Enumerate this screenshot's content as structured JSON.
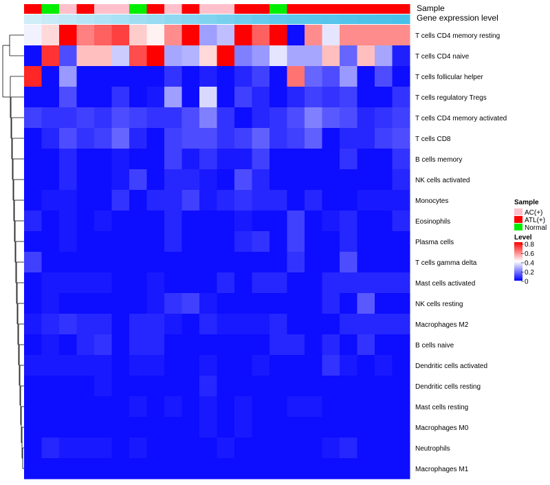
{
  "chart_data": {
    "type": "heatmap",
    "title": "",
    "colors": {
      "low": "#0000ff",
      "mid": "#ffffff",
      "high": "#ff0000",
      "sample_colors": {
        "AC(+)": "#ffc0cb",
        "ATL(+)": "#ff0000",
        "Normal": "#00ee00"
      },
      "gene_expression_low": "#e0f3fa",
      "gene_expression_high": "#3fbde8",
      "dendrogram": "#000000"
    },
    "annotation_labels": [
      "Sample",
      "Gene expression level"
    ],
    "sample_annotation": [
      "ATL(+)",
      "Normal",
      "AC(+)",
      "ATL(+)",
      "AC(+)",
      "AC(+)",
      "Normal",
      "ATL(+)",
      "AC(+)",
      "ATL(+)",
      "AC(+)",
      "AC(+)",
      "ATL(+)",
      "ATL(+)",
      "Normal",
      "ATL(+)",
      "ATL(+)",
      "ATL(+)",
      "ATL(+)",
      "ATL(+)",
      "ATL(+)",
      "ATL(+)"
    ],
    "gene_expression_level": [
      0.1,
      0.15,
      0.2,
      0.25,
      0.3,
      0.35,
      0.4,
      0.45,
      0.5,
      0.55,
      0.6,
      0.65,
      0.7,
      0.75,
      0.8,
      0.82,
      0.84,
      0.86,
      0.88,
      0.9,
      0.92,
      0.95
    ],
    "rows": [
      "T cells CD4 memory resting",
      "T cells CD4 naive",
      "T cells follicular helper",
      "T cells regulatory  Tregs",
      "T cells CD4 memory activated",
      "T cells CD8",
      "B cells memory",
      "NK cells activated",
      "Monocytes",
      "Eosinophils",
      "Plasma cells",
      "T cells gamma delta",
      "Mast cells activated",
      "NK cells resting",
      "Macrophages M2",
      "B cells naive",
      "Dendritic cells activated",
      "Dendritic cells resting",
      "Mast cells resting",
      "Macrophages M0",
      "Neutrophils",
      "Macrophages M1"
    ],
    "values": [
      [
        0.38,
        0.46,
        0.8,
        0.6,
        0.65,
        0.7,
        0.48,
        0.42,
        0.58,
        0.8,
        0.25,
        0.3,
        0.8,
        0.65,
        0.8,
        0.02,
        0.58,
        0.36,
        0.58,
        0.58,
        0.58,
        0.58
      ],
      [
        0.02,
        0.72,
        0.12,
        0.5,
        0.5,
        0.32,
        0.68,
        0.8,
        0.26,
        0.28,
        0.46,
        0.8,
        0.2,
        0.24,
        0.36,
        0.26,
        0.26,
        0.5,
        0.16,
        0.5,
        0.26,
        0.05
      ],
      [
        0.74,
        0.02,
        0.24,
        0.02,
        0.02,
        0.02,
        0.02,
        0.02,
        0.08,
        0.02,
        0.05,
        0.02,
        0.06,
        0.1,
        0.02,
        0.62,
        0.16,
        0.12,
        0.24,
        0.02,
        0.12,
        0.02
      ],
      [
        0.02,
        0.02,
        0.12,
        0.02,
        0.02,
        0.08,
        0.02,
        0.04,
        0.25,
        0.02,
        0.34,
        0.02,
        0.1,
        0.06,
        0.02,
        0.06,
        0.1,
        0.08,
        0.1,
        0.02,
        0.02,
        0.08
      ],
      [
        0.1,
        0.08,
        0.08,
        0.1,
        0.08,
        0.12,
        0.1,
        0.08,
        0.08,
        0.12,
        0.2,
        0.08,
        0.02,
        0.06,
        0.08,
        0.12,
        0.2,
        0.14,
        0.12,
        0.06,
        0.08,
        0.1
      ],
      [
        0.02,
        0.06,
        0.12,
        0.08,
        0.1,
        0.16,
        0.06,
        0.02,
        0.1,
        0.12,
        0.12,
        0.08,
        0.1,
        0.15,
        0.08,
        0.1,
        0.15,
        0.02,
        0.06,
        0.06,
        0.1,
        0.12
      ],
      [
        0.02,
        0.02,
        0.06,
        0.02,
        0.02,
        0.04,
        0.02,
        0.02,
        0.1,
        0.04,
        0.08,
        0.04,
        0.04,
        0.1,
        0.02,
        0.02,
        0.02,
        0.02,
        0.08,
        0.02,
        0.02,
        0.08
      ],
      [
        0.02,
        0.02,
        0.06,
        0.02,
        0.02,
        0.04,
        0.1,
        0.02,
        0.06,
        0.06,
        0.04,
        0.02,
        0.12,
        0.06,
        0.02,
        0.02,
        0.02,
        0.02,
        0.02,
        0.02,
        0.02,
        0.06
      ],
      [
        0.02,
        0.04,
        0.04,
        0.02,
        0.02,
        0.08,
        0.02,
        0.06,
        0.06,
        0.1,
        0.04,
        0.06,
        0.08,
        0.06,
        0.06,
        0.02,
        0.06,
        0.02,
        0.02,
        0.04,
        0.04,
        0.04
      ],
      [
        0.06,
        0.02,
        0.04,
        0.02,
        0.04,
        0.02,
        0.02,
        0.02,
        0.06,
        0.02,
        0.02,
        0.02,
        0.04,
        0.02,
        0.02,
        0.1,
        0.02,
        0.04,
        0.06,
        0.02,
        0.02,
        0.06
      ],
      [
        0.02,
        0.02,
        0.04,
        0.02,
        0.02,
        0.02,
        0.02,
        0.02,
        0.06,
        0.02,
        0.02,
        0.02,
        0.06,
        0.08,
        0.02,
        0.1,
        0.02,
        0.02,
        0.06,
        0.02,
        0.02,
        0.02
      ],
      [
        0.1,
        0.02,
        0.02,
        0.02,
        0.02,
        0.02,
        0.02,
        0.02,
        0.02,
        0.02,
        0.02,
        0.02,
        0.02,
        0.02,
        0.02,
        0.08,
        0.02,
        0.02,
        0.12,
        0.02,
        0.02,
        0.02
      ],
      [
        0.02,
        0.04,
        0.04,
        0.04,
        0.04,
        0.02,
        0.02,
        0.04,
        0.02,
        0.02,
        0.02,
        0.06,
        0.02,
        0.06,
        0.06,
        0.02,
        0.02,
        0.06,
        0.06,
        0.06,
        0.06,
        0.06
      ],
      [
        0.02,
        0.04,
        0.02,
        0.02,
        0.02,
        0.02,
        0.02,
        0.04,
        0.08,
        0.1,
        0.04,
        0.02,
        0.02,
        0.02,
        0.02,
        0.02,
        0.02,
        0.06,
        0.02,
        0.14,
        0.02,
        0.02
      ],
      [
        0.04,
        0.06,
        0.08,
        0.06,
        0.06,
        0.02,
        0.06,
        0.06,
        0.04,
        0.02,
        0.06,
        0.04,
        0.04,
        0.04,
        0.06,
        0.02,
        0.02,
        0.02,
        0.06,
        0.06,
        0.06,
        0.06
      ],
      [
        0.02,
        0.04,
        0.02,
        0.06,
        0.08,
        0.02,
        0.06,
        0.06,
        0.02,
        0.02,
        0.02,
        0.02,
        0.02,
        0.02,
        0.06,
        0.06,
        0.02,
        0.06,
        0.02,
        0.08,
        0.02,
        0.02
      ],
      [
        0.04,
        0.04,
        0.04,
        0.04,
        0.04,
        0.02,
        0.04,
        0.04,
        0.02,
        0.02,
        0.04,
        0.02,
        0.02,
        0.04,
        0.02,
        0.02,
        0.02,
        0.08,
        0.04,
        0.02,
        0.04,
        0.02
      ],
      [
        0.02,
        0.02,
        0.02,
        0.02,
        0.04,
        0.02,
        0.02,
        0.02,
        0.02,
        0.02,
        0.06,
        0.02,
        0.02,
        0.02,
        0.02,
        0.02,
        0.02,
        0.02,
        0.02,
        0.02,
        0.02,
        0.02
      ],
      [
        0.02,
        0.02,
        0.02,
        0.02,
        0.02,
        0.02,
        0.04,
        0.02,
        0.04,
        0.02,
        0.04,
        0.02,
        0.04,
        0.02,
        0.02,
        0.04,
        0.04,
        0.02,
        0.02,
        0.02,
        0.02,
        0.02
      ],
      [
        0.02,
        0.02,
        0.02,
        0.02,
        0.02,
        0.02,
        0.02,
        0.02,
        0.02,
        0.02,
        0.04,
        0.02,
        0.04,
        0.02,
        0.02,
        0.02,
        0.02,
        0.02,
        0.02,
        0.02,
        0.02,
        0.02
      ],
      [
        0.02,
        0.06,
        0.04,
        0.04,
        0.04,
        0.02,
        0.04,
        0.02,
        0.02,
        0.02,
        0.02,
        0.04,
        0.02,
        0.02,
        0.02,
        0.02,
        0.02,
        0.04,
        0.06,
        0.02,
        0.02,
        0.02
      ],
      [
        0.02,
        0.02,
        0.02,
        0.02,
        0.02,
        0.02,
        0.02,
        0.02,
        0.02,
        0.02,
        0.02,
        0.02,
        0.02,
        0.02,
        0.02,
        0.02,
        0.02,
        0.02,
        0.02,
        0.02,
        0.02,
        0.02
      ]
    ],
    "color_scale": {
      "min": 0,
      "max": 0.8,
      "ticks": [
        "0.8",
        "0.6",
        "0.4",
        "0.2",
        "0"
      ]
    },
    "legend": {
      "sample_title": "Sample",
      "sample_entries": [
        "AC(+)",
        "ATL(+)",
        "Normal"
      ],
      "level_title": "Level",
      "placement": "right"
    },
    "row_order_dendrogram": "hierarchical"
  }
}
